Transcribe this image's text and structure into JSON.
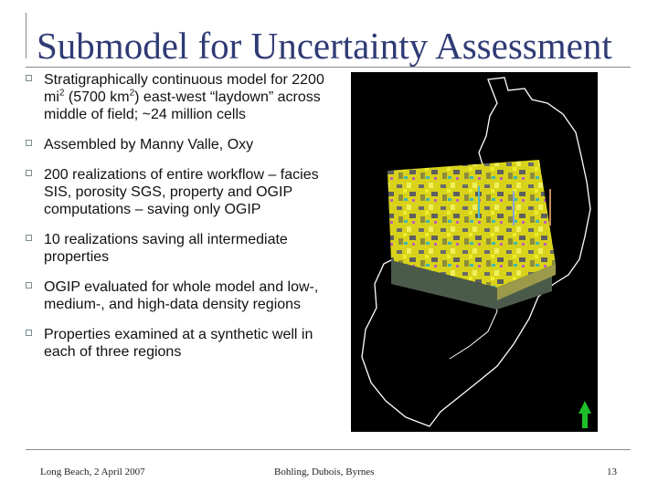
{
  "slide": {
    "title": "Submodel for Uncertainty Assessment",
    "bullets": [
      {
        "before_sup1": "Stratigraphically continuous model for 2200 mi",
        "sup1": "2",
        "between": " (5700 km",
        "sup2": "2",
        "after": ") east-west “laydown” across middle of field; ~24 million cells"
      },
      {
        "text": "Assembled by Manny Valle, Oxy"
      },
      {
        "text": "200 realizations of entire workflow – facies SIS, porosity SGS, property and OGIP computations – saving only OGIP"
      },
      {
        "text": "10 realizations saving all intermediate properties"
      },
      {
        "text": "OGIP evaluated for whole model and low-, medium-, and high-data density regions"
      },
      {
        "text": "Properties examined at a synthetic well in each of three regions"
      }
    ]
  },
  "footer": {
    "left": "Long Beach, 2 April 2007",
    "center": "Bohling, Dubois, Byrnes",
    "page_number": "13"
  },
  "colors": {
    "title": "#2f3b75",
    "model_yellow": "#e6e41c",
    "model_grey": "#6e6e6e",
    "north_arrow": "#1fbf2a"
  }
}
